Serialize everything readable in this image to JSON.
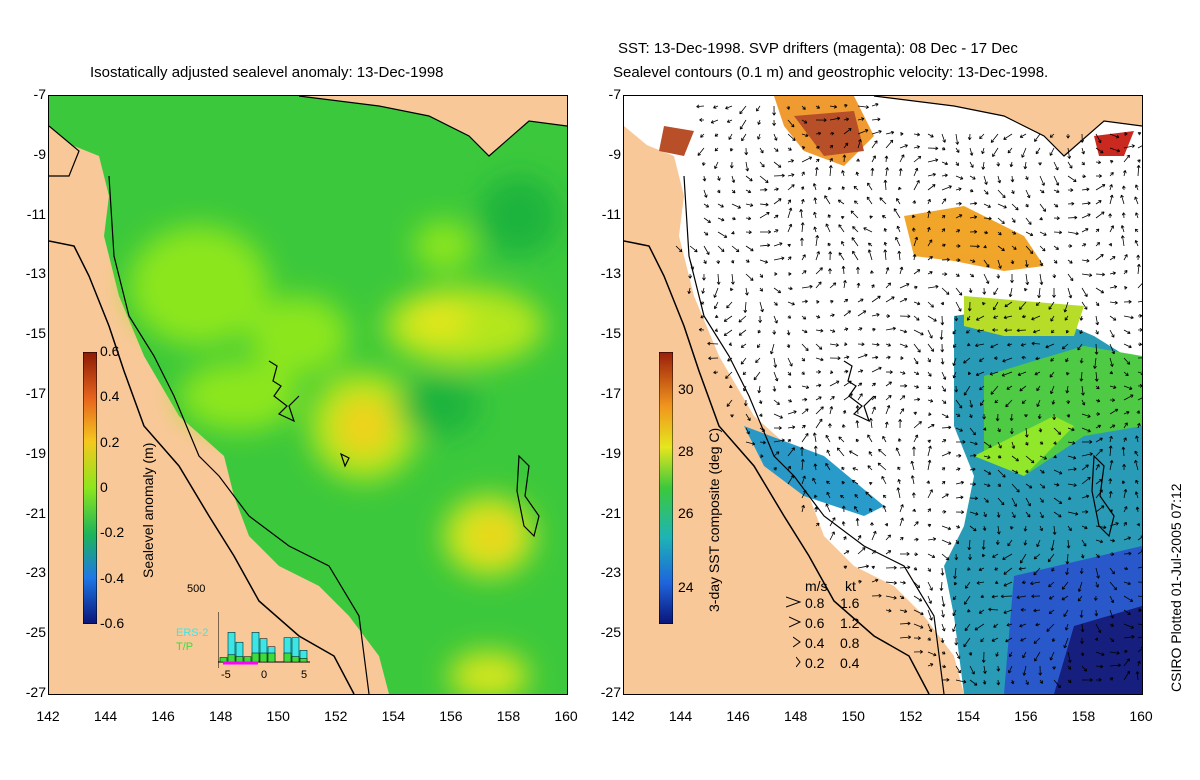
{
  "left_panel": {
    "title": "Isostatically adjusted sealevel anomaly: 13-Dec-1998",
    "colorbar": {
      "title": "Sealevel anomaly (m)",
      "ticks": [
        "0.6",
        "0.4",
        "0.2",
        "0",
        "-0.2",
        "-0.4",
        "-0.6"
      ],
      "colors": [
        "#8c1a05",
        "#f08c1a",
        "#f5e61e",
        "#8ce61e",
        "#1eb43c",
        "#1e96e6",
        "#0a1e8c"
      ]
    },
    "histogram": {
      "ymax_label": "500",
      "series1": "ERS-2",
      "series2": "T/P",
      "series1_color": "#3ce6e6",
      "series2_color": "#3cdc3c",
      "x_ticks": [
        "-5",
        "0",
        "5"
      ],
      "ers2_values": [
        0,
        330,
        220,
        0,
        330,
        260,
        170,
        0,
        270,
        270,
        130
      ],
      "tp_values": [
        50,
        80,
        60,
        60,
        100,
        100,
        100,
        0,
        100,
        60,
        40
      ]
    }
  },
  "right_panel": {
    "title_line1": "SST: 13-Dec-1998. SVP drifters (magenta): 08 Dec - 17 Dec",
    "title_line2": "Sealevel contours (0.1 m) and geostrophic velocity: 13-Dec-1998.",
    "colorbar": {
      "title": "3-day SST composite (deg C)",
      "ticks": [
        "30",
        "28",
        "26",
        "24"
      ],
      "colors": [
        "#9a1e0a",
        "#f0961e",
        "#e6e61e",
        "#3cc83c",
        "#1eb4b4",
        "#1e64dc",
        "#0a1478"
      ]
    },
    "velocity_legend": {
      "header_ms": "m/s",
      "header_kt": "kt",
      "rows": [
        {
          "ms": "0.8",
          "kt": "1.6"
        },
        {
          "ms": "0.6",
          "kt": "1.2"
        },
        {
          "ms": "0.4",
          "kt": "0.8"
        },
        {
          "ms": "0.2",
          "kt": "0.4"
        }
      ]
    }
  },
  "axes": {
    "y_ticks": [
      "-7",
      "-9",
      "-11",
      "-13",
      "-15",
      "-17",
      "-19",
      "-21",
      "-23",
      "-25",
      "-27"
    ],
    "x_ticks": [
      "142",
      "144",
      "146",
      "148",
      "150",
      "152",
      "154",
      "156",
      "158",
      "160"
    ]
  },
  "colors": {
    "land": "#f9c898",
    "ocean_base": "#3cc83c",
    "sst_white": "#ffffff"
  },
  "credit": "CSIRO Plotted 01-Jul-2005 07:12"
}
